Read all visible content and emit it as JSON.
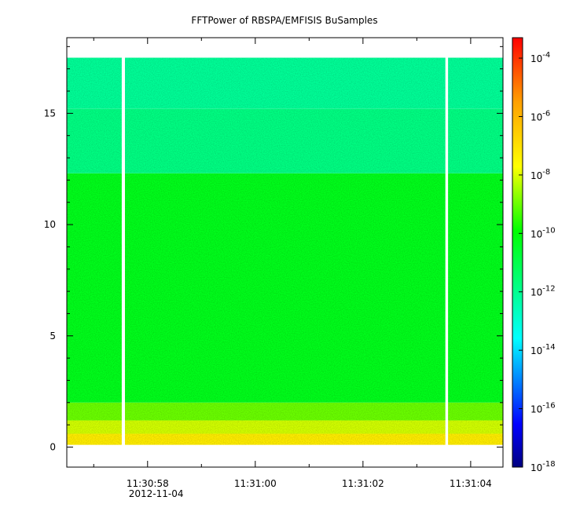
{
  "chart_data": {
    "type": "heatmap",
    "title": "FFTPower of RBSPA/EMFISIS  BuSamples",
    "xlabel": "",
    "ylabel": "",
    "x_ticks": [
      {
        "time": "11:30:58",
        "sec": 58,
        "date": "2012-11-04"
      },
      {
        "time": "11:31:00",
        "sec": 60
      },
      {
        "time": "11:31:02",
        "sec": 62
      },
      {
        "time": "11:31:04",
        "sec": 64
      }
    ],
    "x_minor_ticks_sec": [
      57,
      59,
      61,
      63
    ],
    "xlim_sec": [
      56.5,
      64.6
    ],
    "y_ticks": [
      "0",
      "5",
      "10",
      "15"
    ],
    "y_tick_values": [
      0,
      5,
      10,
      15
    ],
    "ylim": [
      -0.9,
      18.4
    ],
    "y_data_range": [
      0.1,
      17.5
    ],
    "data_gaps_sec": [
      [
        57.52,
        57.58
      ],
      [
        63.53,
        63.58
      ]
    ],
    "bands": [
      {
        "y0": 0.1,
        "y1": 0.6,
        "log_power": -7.3
      },
      {
        "y0": 0.6,
        "y1": 1.2,
        "log_power": -8.1
      },
      {
        "y0": 1.2,
        "y1": 2.0,
        "log_power": -9.0
      },
      {
        "y0": 2.0,
        "y1": 12.3,
        "log_power": -10.3
      },
      {
        "y0": 12.3,
        "y1": 15.2,
        "log_power": -11.8
      },
      {
        "y0": 15.2,
        "y1": 17.5,
        "log_power": -12.1
      }
    ],
    "colorbar": {
      "scale": "log",
      "range_exp": [
        -18,
        -3.3
      ],
      "ticks": [
        {
          "base": "10",
          "exp": "-4",
          "v": -4
        },
        {
          "base": "10",
          "exp": "-6",
          "v": -6
        },
        {
          "base": "10",
          "exp": "-8",
          "v": -8
        },
        {
          "base": "10",
          "exp": "-10",
          "v": -10
        },
        {
          "base": "10",
          "exp": "-12",
          "v": -12
        },
        {
          "base": "10",
          "exp": "-14",
          "v": -14
        },
        {
          "base": "10",
          "exp": "-16",
          "v": -16
        },
        {
          "base": "10",
          "exp": "-18",
          "v": -18
        }
      ],
      "colormap": "rainbow"
    }
  }
}
